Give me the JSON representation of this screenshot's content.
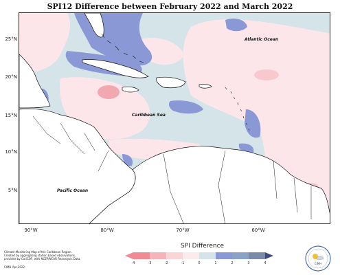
{
  "title": "SPI12 Difference between February 2022 and March 2022",
  "lat_labels": [
    "25°N",
    "20°N",
    "15°N",
    "10°N",
    "5°N"
  ],
  "lon_labels": [
    "90°W",
    "80°W",
    "70°W",
    "60°W"
  ],
  "places": {
    "atlantic": "Atlantic Ocean",
    "caribbean": "Caribbean Sea",
    "pacific": "Pacific Ocean"
  },
  "credits": {
    "line1": "Climate Monitoring Map of the Caribbean Region.",
    "line2": "Created by aggregating station based observations,",
    "line3": "provided by CariCOF, with NCEP/NCAR Reanalysis Data.",
    "line4": "CIMH Apr-2022"
  },
  "legend": {
    "title": "SPI Difference",
    "ticks": [
      "-4",
      "-3",
      "-2",
      "-1",
      "0",
      "1",
      "2",
      "3",
      "4"
    ],
    "colors": [
      "#f08a95",
      "#f5b3ba",
      "#f9d5d8",
      "#fcebed",
      "#d4e4e8",
      "#8a98d6",
      "#8aa3c5",
      "#7a8aa8",
      "#3e4a7a"
    ]
  },
  "logo": {
    "text": "CIMH"
  },
  "colors": {
    "neutral": "#d4e4e8",
    "light_pink": "#fce6e9",
    "pink": "#f7c9cf",
    "deep_pink": "#f2a8b1",
    "blue": "#8a98d6",
    "land": "#ffffff"
  }
}
